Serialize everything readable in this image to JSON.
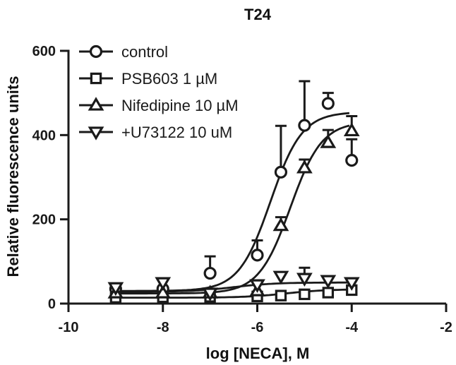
{
  "chart_data": {
    "type": "scatter",
    "title": "T24",
    "xlabel": "log [NECA], M",
    "ylabel": "Relative fluorescence units",
    "xlim": [
      -10,
      -2
    ],
    "ylim": [
      0,
      600
    ],
    "xticks": [
      -10,
      -8,
      -6,
      -4,
      -2
    ],
    "yticks": [
      0,
      200,
      400,
      600
    ],
    "xtick_labels": [
      "-10",
      "-8",
      "-6",
      "-4",
      "-2"
    ],
    "ytick_labels": [
      "0",
      "200",
      "400",
      "600"
    ],
    "grid": false,
    "legend_position": "top-left",
    "series": [
      {
        "name": "control",
        "marker": "circle",
        "x": [
          -9,
          -8,
          -7,
          -6,
          -5.5,
          -5,
          -4.5,
          -4
        ],
        "y": [
          35,
          35,
          72,
          115,
          312,
          423,
          475,
          340
        ],
        "error": [
          10,
          10,
          40,
          35,
          110,
          105,
          25,
          50
        ],
        "fit": {
          "bottom": 30,
          "top": 455,
          "logEC50": -5.72,
          "hill": 1.3
        }
      },
      {
        "name": "PSB603 1 µM",
        "marker": "square",
        "x": [
          -9,
          -8,
          -7,
          -6,
          -5.5,
          -5,
          -4.5,
          -4
        ],
        "y": [
          14,
          15,
          16,
          17,
          19,
          22,
          26,
          32
        ],
        "error": [
          5,
          5,
          5,
          5,
          5,
          8,
          8,
          10
        ],
        "fit": {
          "bottom": 14,
          "top": 34,
          "logEC50": -5.4,
          "hill": 1.0
        }
      },
      {
        "name": "Nifedipine 10 µM",
        "marker": "triangle-up",
        "x": [
          -9,
          -8,
          -7,
          -6,
          -5.5,
          -5,
          -4.5,
          -4
        ],
        "y": [
          25,
          25,
          25,
          30,
          185,
          322,
          382,
          410
        ],
        "error": [
          8,
          8,
          8,
          10,
          20,
          20,
          30,
          35
        ],
        "fit": {
          "bottom": 24,
          "top": 432,
          "logEC50": -5.3,
          "hill": 1.3
        }
      },
      {
        "name": "+U73122 10 uM",
        "marker": "triangle-down",
        "x": [
          -9,
          -8,
          -7,
          -6,
          -5.5,
          -5,
          -4.5,
          -4
        ],
        "y": [
          38,
          50,
          25,
          45,
          65,
          60,
          55,
          50
        ],
        "error": [
          10,
          10,
          8,
          10,
          10,
          25,
          10,
          10
        ],
        "fit": {
          "bottom": 28,
          "top": 50,
          "logEC50": -6.5,
          "hill": 1.0
        }
      }
    ]
  }
}
